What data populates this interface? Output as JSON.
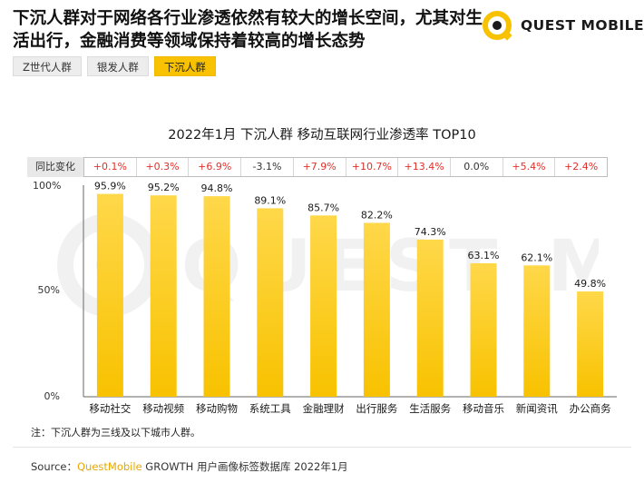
{
  "headline": "下沉人群对于网络各行业渗透依然有较大的增长空间，尤其对生活出行，金融消费等领域保持着较高的增长态势",
  "logo": {
    "text": "QUEST MOBILE",
    "color": "#f8c200"
  },
  "tabs": [
    {
      "label": "Z世代人群",
      "active": false
    },
    {
      "label": "银发人群",
      "active": false
    },
    {
      "label": "下沉人群",
      "active": true
    }
  ],
  "change_row": {
    "label": "同比变化",
    "values": [
      "+0.1%",
      "+0.3%",
      "+6.9%",
      "-3.1%",
      "+7.9%",
      "+10.7%",
      "+13.4%",
      "0.0%",
      "+5.4%",
      "+2.4%"
    ]
  },
  "chart_data": {
    "type": "bar",
    "title": "2022年1月 下沉人群 移动互联网行业渗透率 TOP10",
    "categories": [
      "移动社交",
      "移动视频",
      "移动购物",
      "系统工具",
      "金融理财",
      "出行服务",
      "生活服务",
      "移动音乐",
      "新闻资讯",
      "办公商务"
    ],
    "values": [
      95.9,
      95.2,
      94.8,
      89.1,
      85.7,
      82.2,
      74.3,
      63.1,
      62.1,
      49.8
    ],
    "value_labels": [
      "95.9%",
      "95.2%",
      "94.8%",
      "89.1%",
      "85.7%",
      "82.2%",
      "74.3%",
      "63.1%",
      "62.1%",
      "49.8%"
    ],
    "ylim": [
      0,
      100
    ],
    "yticks": [
      "0%",
      "50%",
      "100%"
    ],
    "bar_color": "#f8c200",
    "bar_color_light": "#ffd84a"
  },
  "note": "注：下沉人群为三线及以下城市人群。",
  "source": {
    "prefix": "Source：",
    "brand": "QuestMobile",
    "rest": " GROWTH 用户画像标签数据库 2022年1月"
  }
}
